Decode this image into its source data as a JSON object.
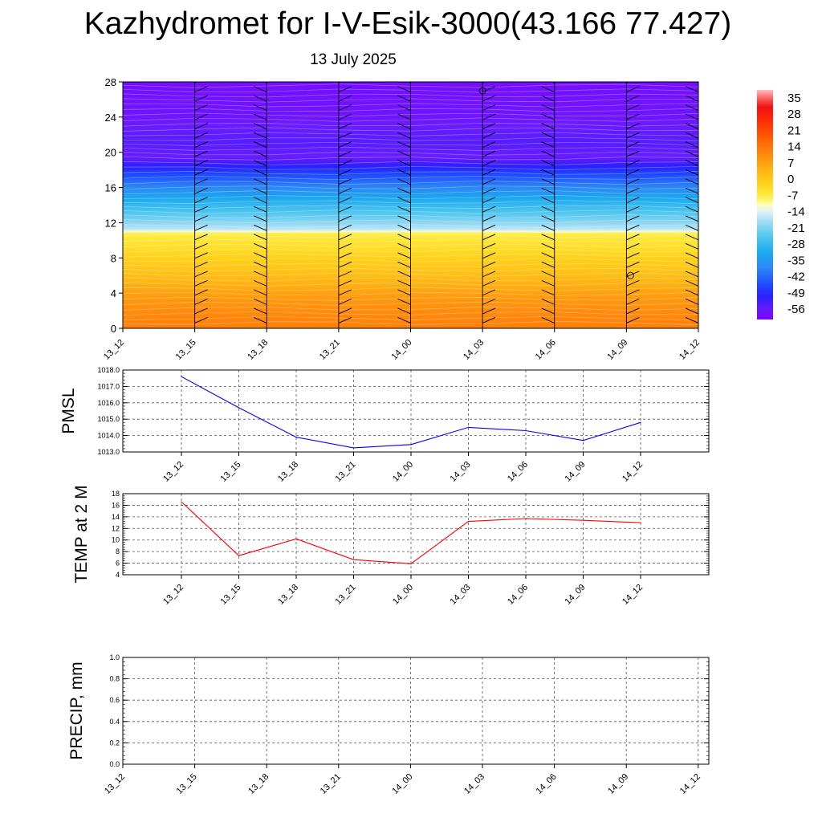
{
  "title": "Kazhydromet for I-V-Esik-3000(43.166 77.427)",
  "subtitle": "13 July 2025",
  "chart_data": [
    {
      "type": "heatmap",
      "name": "cross-section",
      "xlabel": "",
      "ylabel": "",
      "categories": [
        "13_12",
        "13_15",
        "13_18",
        "13_21",
        "14_00",
        "14_03",
        "14_06",
        "14_09",
        "14_12"
      ],
      "y_ticks": [
        0,
        4,
        8,
        12,
        16,
        20,
        24,
        28
      ],
      "ylim": [
        0,
        28
      ],
      "colorbar": {
        "labels": [
          "35",
          "28",
          "21",
          "14",
          "7",
          "0",
          "-7",
          "-14",
          "-21",
          "-28",
          "-35",
          "-42",
          "-49",
          "-56"
        ],
        "range": [
          -60,
          38
        ]
      },
      "temperature_profile": {
        "heights": [
          0,
          2,
          4,
          6,
          8,
          10,
          10.8,
          11.2,
          12,
          14,
          16,
          18,
          19.5,
          21,
          24,
          28
        ],
        "values": [
          12,
          10,
          7,
          2,
          -2,
          -6,
          -8,
          -16,
          -20,
          -28,
          -38,
          -48,
          -56,
          -54,
          -57,
          -58
        ]
      }
    },
    {
      "type": "line",
      "name": "pmsl",
      "ylabel": "PMSL",
      "ylim": [
        1013.0,
        1018.0
      ],
      "y_ticks": [
        "1013.0",
        "1014.0",
        "1015.0",
        "1016.0",
        "1017.0",
        "1018.0"
      ],
      "color": "#0000ff",
      "categories": [
        "13_12",
        "13_15",
        "13_18",
        "13_21",
        "14_00",
        "14_03",
        "14_06",
        "14_09",
        "14_12"
      ],
      "values": [
        1017.6,
        1015.7,
        1013.9,
        1013.25,
        1013.45,
        1014.5,
        1014.3,
        1013.7,
        1014.8
      ]
    },
    {
      "type": "line",
      "name": "temp2m",
      "ylabel": "TEMP at 2 M",
      "ylim": [
        4,
        18
      ],
      "y_ticks": [
        "4",
        "6",
        "8",
        "10",
        "12",
        "14",
        "16",
        "18"
      ],
      "color": "#ff0000",
      "categories": [
        "13_12",
        "13_15",
        "13_18",
        "13_21",
        "14_00",
        "14_03",
        "14_06",
        "14_09",
        "14_12"
      ],
      "values": [
        16.6,
        7.3,
        10.2,
        6.6,
        5.9,
        13.2,
        13.7,
        13.4,
        13.0
      ]
    },
    {
      "type": "line",
      "name": "precip",
      "ylabel": "PRECIP, mm",
      "ylim": [
        0.0,
        1.0
      ],
      "y_ticks": [
        "0.0",
        "0.2",
        "0.4",
        "0.6",
        "0.8",
        "1.0"
      ],
      "color": "#00aa00",
      "categories": [
        "13_12",
        "13_15",
        "13_18",
        "13_21",
        "14_00",
        "14_03",
        "14_06",
        "14_09",
        "14_12"
      ],
      "values": [
        0,
        0,
        0,
        0,
        0,
        0,
        0,
        0,
        0
      ]
    }
  ]
}
